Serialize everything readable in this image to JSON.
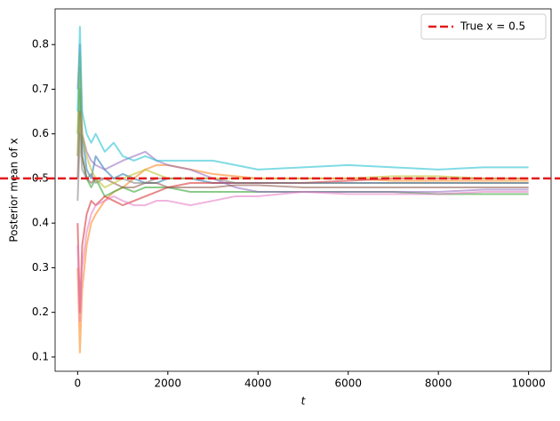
{
  "chart_data": {
    "type": "line",
    "xlabel": "t",
    "ylabel": "Posterior mean of x",
    "x": [
      0,
      50,
      100,
      200,
      300,
      400,
      600,
      800,
      1000,
      1250,
      1500,
      1750,
      2000,
      2500,
      3000,
      3500,
      4000,
      5000,
      6000,
      7000,
      8000,
      9000,
      10000
    ],
    "series": [
      {
        "color": "#1f77b4",
        "values": [
          0.55,
          0.7,
          0.6,
          0.52,
          0.5,
          0.55,
          0.52,
          0.5,
          0.51,
          0.5,
          0.49,
          0.49,
          0.5,
          0.5,
          0.49,
          0.49,
          0.49,
          0.49,
          0.49,
          0.49,
          0.49,
          0.49,
          0.49
        ]
      },
      {
        "color": "#ff7f0e",
        "values": [
          0.3,
          0.11,
          0.25,
          0.35,
          0.4,
          0.42,
          0.45,
          0.47,
          0.48,
          0.5,
          0.52,
          0.53,
          0.53,
          0.52,
          0.51,
          0.505,
          0.5,
          0.5,
          0.5,
          0.495,
          0.495,
          0.495,
          0.495
        ]
      },
      {
        "color": "#2ca02c",
        "values": [
          0.6,
          0.75,
          0.55,
          0.5,
          0.48,
          0.5,
          0.46,
          0.47,
          0.48,
          0.47,
          0.48,
          0.48,
          0.48,
          0.47,
          0.47,
          0.47,
          0.47,
          0.47,
          0.47,
          0.47,
          0.465,
          0.465,
          0.465
        ]
      },
      {
        "color": "#d62728",
        "values": [
          0.4,
          0.2,
          0.35,
          0.42,
          0.45,
          0.44,
          0.46,
          0.45,
          0.44,
          0.45,
          0.46,
          0.47,
          0.48,
          0.49,
          0.49,
          0.49,
          0.49,
          0.49,
          0.495,
          0.5,
          0.5,
          0.5,
          0.5
        ]
      },
      {
        "color": "#9467bd",
        "values": [
          0.7,
          0.8,
          0.6,
          0.56,
          0.54,
          0.53,
          0.52,
          0.53,
          0.54,
          0.55,
          0.56,
          0.54,
          0.53,
          0.52,
          0.5,
          0.48,
          0.47,
          0.47,
          0.47,
          0.47,
          0.47,
          0.475,
          0.475
        ]
      },
      {
        "color": "#8c564b",
        "values": [
          0.5,
          0.65,
          0.55,
          0.5,
          0.49,
          0.5,
          0.5,
          0.49,
          0.48,
          0.48,
          0.49,
          0.49,
          0.48,
          0.48,
          0.48,
          0.485,
          0.485,
          0.48,
          0.48,
          0.48,
          0.48,
          0.48,
          0.48
        ]
      },
      {
        "color": "#e377c2",
        "values": [
          0.35,
          0.18,
          0.3,
          0.38,
          0.42,
          0.44,
          0.45,
          0.46,
          0.45,
          0.44,
          0.44,
          0.45,
          0.45,
          0.44,
          0.45,
          0.46,
          0.46,
          0.47,
          0.465,
          0.465,
          0.465,
          0.47,
          0.47
        ]
      },
      {
        "color": "#7f7f7f",
        "values": [
          0.45,
          0.6,
          0.52,
          0.5,
          0.51,
          0.49,
          0.5,
          0.5,
          0.5,
          0.49,
          0.49,
          0.5,
          0.5,
          0.5,
          0.5,
          0.49,
          0.49,
          0.49,
          0.49,
          0.49,
          0.49,
          0.49,
          0.49
        ]
      },
      {
        "color": "#bcbd22",
        "values": [
          0.55,
          0.78,
          0.6,
          0.55,
          0.52,
          0.5,
          0.48,
          0.49,
          0.5,
          0.51,
          0.52,
          0.51,
          0.5,
          0.5,
          0.5,
          0.5,
          0.5,
          0.5,
          0.5,
          0.505,
          0.505,
          0.5,
          0.5
        ]
      },
      {
        "color": "#17becf",
        "values": [
          0.65,
          0.84,
          0.65,
          0.6,
          0.58,
          0.6,
          0.56,
          0.58,
          0.55,
          0.54,
          0.55,
          0.54,
          0.54,
          0.54,
          0.54,
          0.53,
          0.52,
          0.525,
          0.53,
          0.525,
          0.52,
          0.525,
          0.525
        ]
      }
    ],
    "hline": {
      "value": 0.5,
      "label": "True x = 0.5",
      "color": "#e31a1c"
    },
    "xlim": [
      -500,
      10500
    ],
    "ylim": [
      0.068,
      0.88
    ],
    "xticks": [
      0,
      2000,
      4000,
      6000,
      8000,
      10000
    ],
    "yticks": [
      0.1,
      0.2,
      0.3,
      0.4,
      0.5,
      0.6,
      0.7,
      0.8
    ],
    "legend": "upper right"
  }
}
